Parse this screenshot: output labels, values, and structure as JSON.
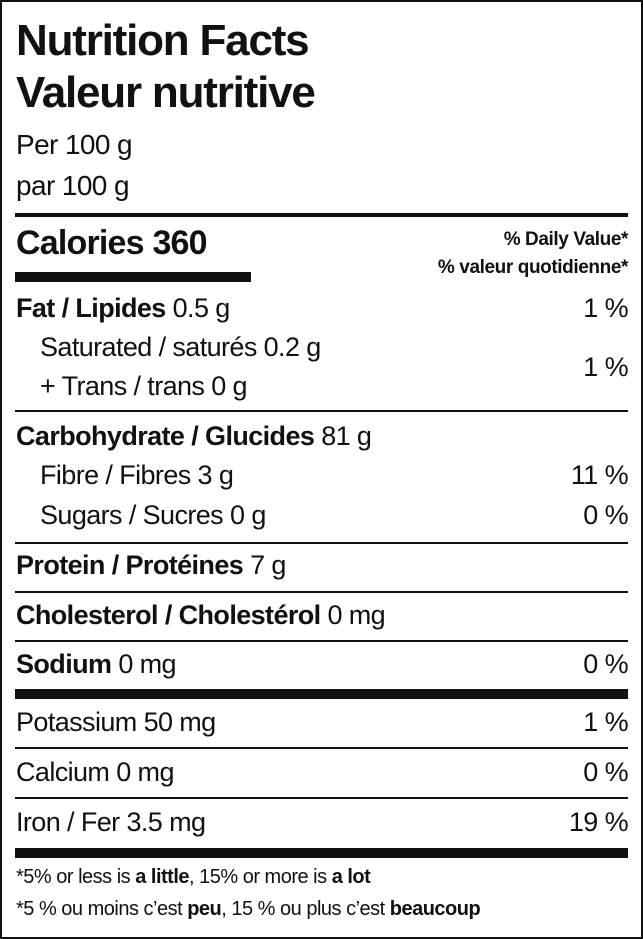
{
  "title": {
    "en": "Nutrition Facts",
    "fr": "Valeur nutritive"
  },
  "serving": {
    "en": "Per 100 g",
    "fr": "par 100 g"
  },
  "calories": {
    "label": "Calories",
    "value": "360"
  },
  "daily_value_header": {
    "en": "% Daily Value*",
    "fr": "% valeur quotidienne*"
  },
  "nutrients": {
    "fat": {
      "label": "Fat / Lipides",
      "amount": "0.5 g",
      "dv": "1 %"
    },
    "saturated": {
      "label": "Saturated / saturés",
      "amount": "0.2 g"
    },
    "trans": {
      "label": "+ Trans / trans",
      "amount": "0 g"
    },
    "sat_trans_dv": "1 %",
    "carbohydrate": {
      "label": "Carbohydrate / Glucides",
      "amount": "81 g"
    },
    "fibre": {
      "label": "Fibre / Fibres",
      "amount": "3 g",
      "dv": "11 %"
    },
    "sugars": {
      "label": "Sugars / Sucres",
      "amount": "0 g",
      "dv": "0 %"
    },
    "protein": {
      "label": "Protein / Protéines",
      "amount": "7 g"
    },
    "cholesterol": {
      "label": "Cholesterol / Cholestérol",
      "amount": "0 mg"
    },
    "sodium": {
      "label": "Sodium",
      "amount": "0 mg",
      "dv": "0 %"
    },
    "potassium": {
      "label": "Potassium",
      "amount": "50 mg",
      "dv": "1 %"
    },
    "calcium": {
      "label": "Calcium",
      "amount": "0 mg",
      "dv": "0 %"
    },
    "iron": {
      "label": "Iron / Fer",
      "amount": "3.5 mg",
      "dv": "19 %"
    }
  },
  "footnote": {
    "en": {
      "a": "*5% or less is ",
      "b": "a little",
      "c": ", 15% or more is ",
      "d": "a lot"
    },
    "fr": {
      "a": "*5 % ou moins c’est ",
      "b": "peu",
      "c": ", 15 % ou plus c’est ",
      "d": "beaucoup"
    }
  }
}
